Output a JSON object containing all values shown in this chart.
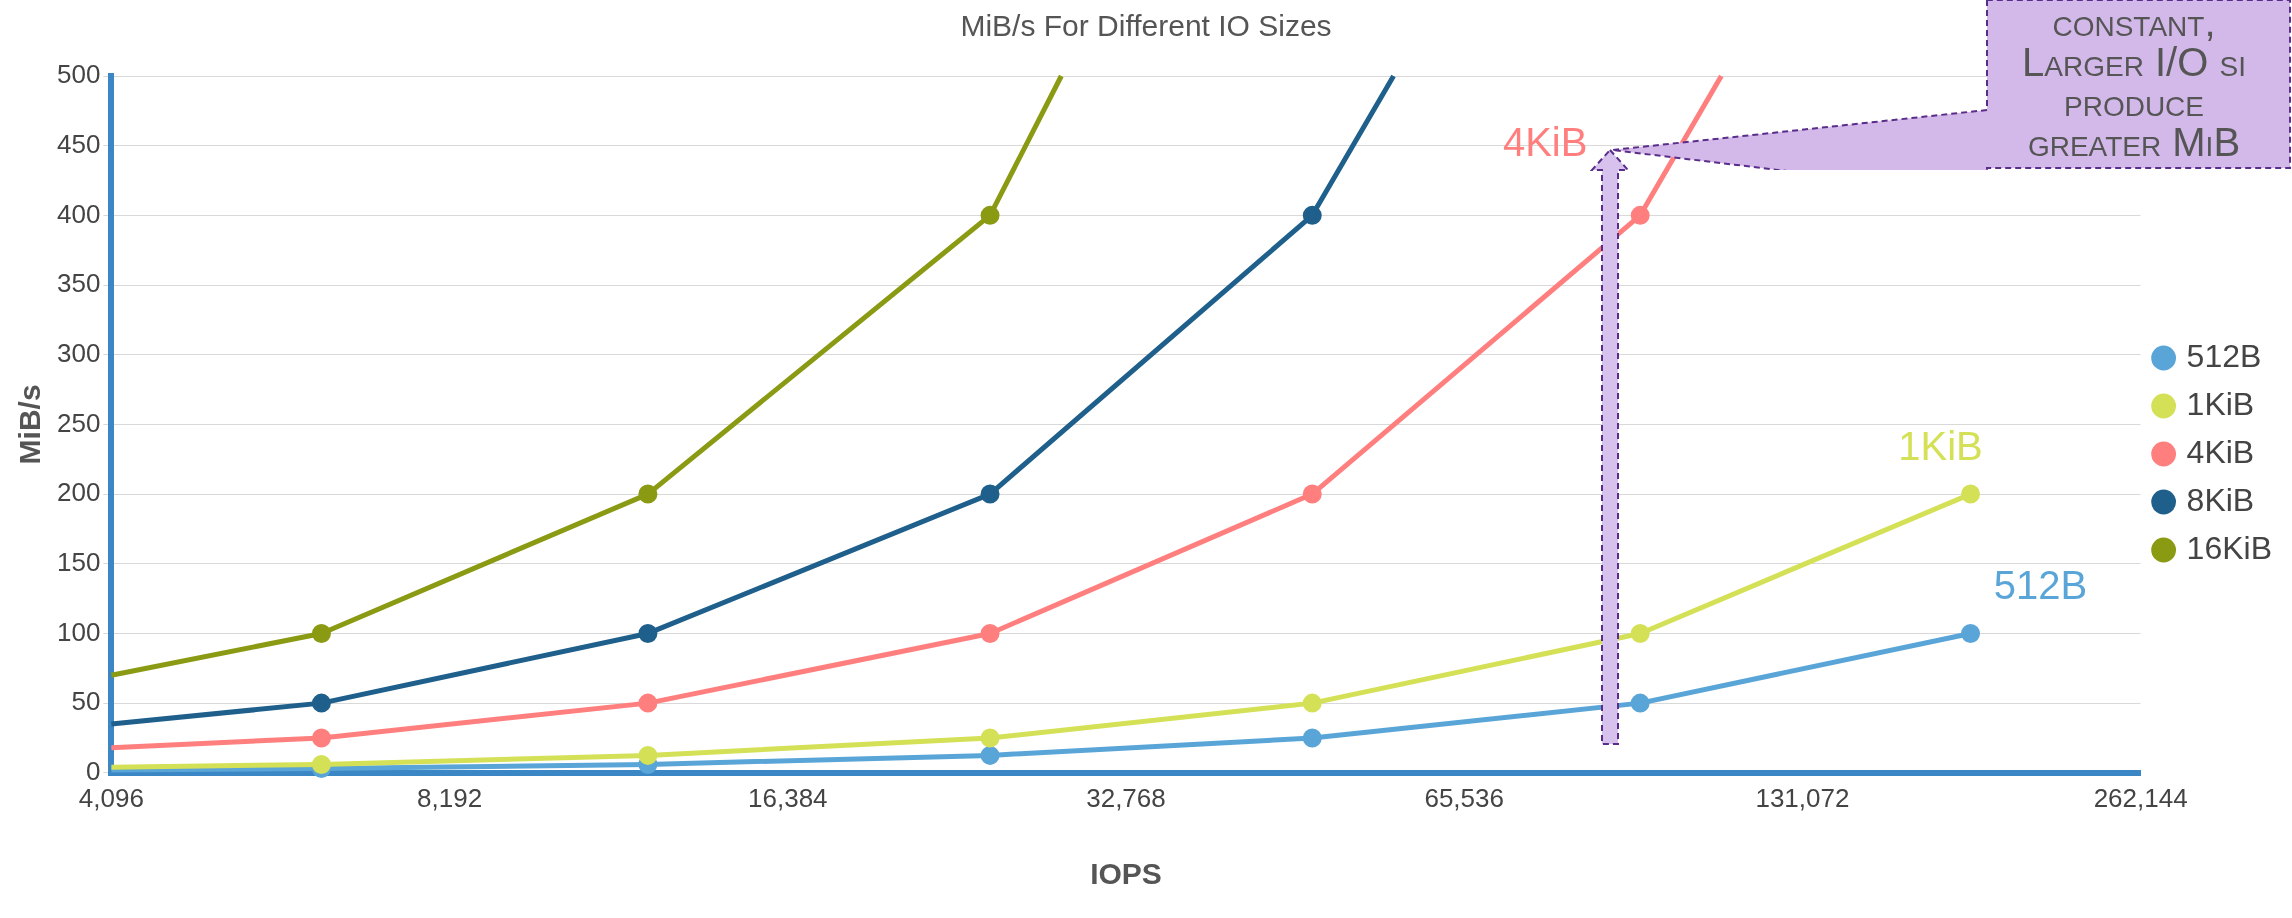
{
  "chart_data": {
    "type": "line",
    "title": "MiB/s For Different IO Sizes",
    "xlabel": "IOPS",
    "ylabel": "MiB/s",
    "log": "x",
    "xlim": [
      4096,
      262144
    ],
    "xticks": [
      {
        "value": 4096,
        "label": "4,096"
      },
      {
        "value": 8192,
        "label": "8,192"
      },
      {
        "value": 16384,
        "label": "16,384"
      },
      {
        "value": 32768,
        "label": "32,768"
      },
      {
        "value": 65536,
        "label": "65,536"
      },
      {
        "value": 131072,
        "label": "131,072"
      },
      {
        "value": 262144,
        "label": "262,144"
      }
    ],
    "ylim": [
      0,
      500
    ],
    "yticks": [
      0,
      50,
      100,
      150,
      200,
      250,
      300,
      350,
      400,
      450,
      500
    ],
    "grid": "y",
    "legend": "right",
    "marker": "circle",
    "line_style": "solid",
    "series": [
      {
        "name": "512B",
        "color": "#5aa5d8",
        "x": [
          4096,
          6300,
          12300,
          24800,
          48000,
          94000,
          185000
        ],
        "values": [
          2,
          3,
          6,
          12.5,
          25,
          50,
          100
        ]
      },
      {
        "name": "1KiB",
        "color": "#d4e157",
        "x": [
          4096,
          6300,
          12300,
          24800,
          48000,
          94000,
          185000
        ],
        "values": [
          4,
          6,
          12.5,
          25,
          50,
          100,
          200
        ]
      },
      {
        "name": "4KiB",
        "color": "#ff7f7f",
        "x": [
          4096,
          6300,
          12300,
          24800,
          48000,
          94000,
          111000
        ],
        "values": [
          18,
          25,
          50,
          100,
          200,
          400,
          500
        ]
      },
      {
        "name": "8KiB",
        "color": "#1f5f8b",
        "x": [
          4096,
          6300,
          12300,
          24800,
          48000,
          56700
        ],
        "values": [
          35,
          50,
          100,
          200,
          400,
          500
        ]
      },
      {
        "name": "16KiB",
        "color": "#8a9a12",
        "x": [
          4096,
          6300,
          12300,
          24800,
          28700
        ],
        "values": [
          70,
          100,
          200,
          400,
          500
        ]
      }
    ],
    "annotations": [
      "4KiB",
      "1KiB",
      "512B",
      "constant,\nLarger I/O si\nproduce\ngreater MiB"
    ]
  }
}
